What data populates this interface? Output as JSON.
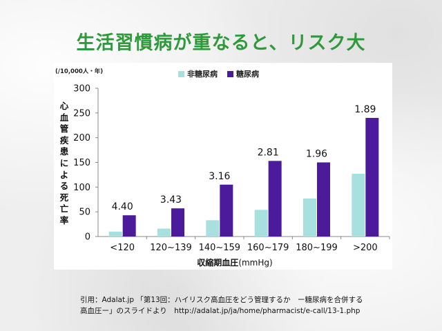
{
  "title": "生活習慣病が重なると、リスク大",
  "chart_data": {
    "type": "bar",
    "unit_note": "(/10,000人・年)",
    "ylabel": "心血管疾患による死亡率",
    "xlabel_bold": "収縮期血圧",
    "xlabel_unit": "(mmHg)",
    "categories": [
      "<120",
      "120~139",
      "140~159",
      "160~179",
      "180~199",
      ">200"
    ],
    "series": [
      {
        "name": "非糖尿病",
        "values": [
          10,
          16,
          33,
          54,
          77,
          127
        ],
        "color": "#a8e0e0"
      },
      {
        "name": "糖尿病",
        "values": [
          43,
          57,
          105,
          153,
          150,
          240
        ],
        "color": "#4b1b9c"
      }
    ],
    "annotations": [
      "4.40",
      "3.43",
      "3.16",
      "2.81",
      "1.96",
      "1.89"
    ],
    "yticks": [
      0,
      50,
      100,
      150,
      200,
      250,
      300
    ],
    "ylim": [
      0,
      300
    ],
    "grid": false,
    "legend_position": "top"
  },
  "citation": {
    "line1": "引用：Adalat.jp 「第13回：ハイリスク高血圧をどう管理するか　ー糖尿病を合併する",
    "line2": "高血圧ー」のスライドより　http://adalat.jp/ja/home/pharmacist/e-call/13-1.php"
  }
}
